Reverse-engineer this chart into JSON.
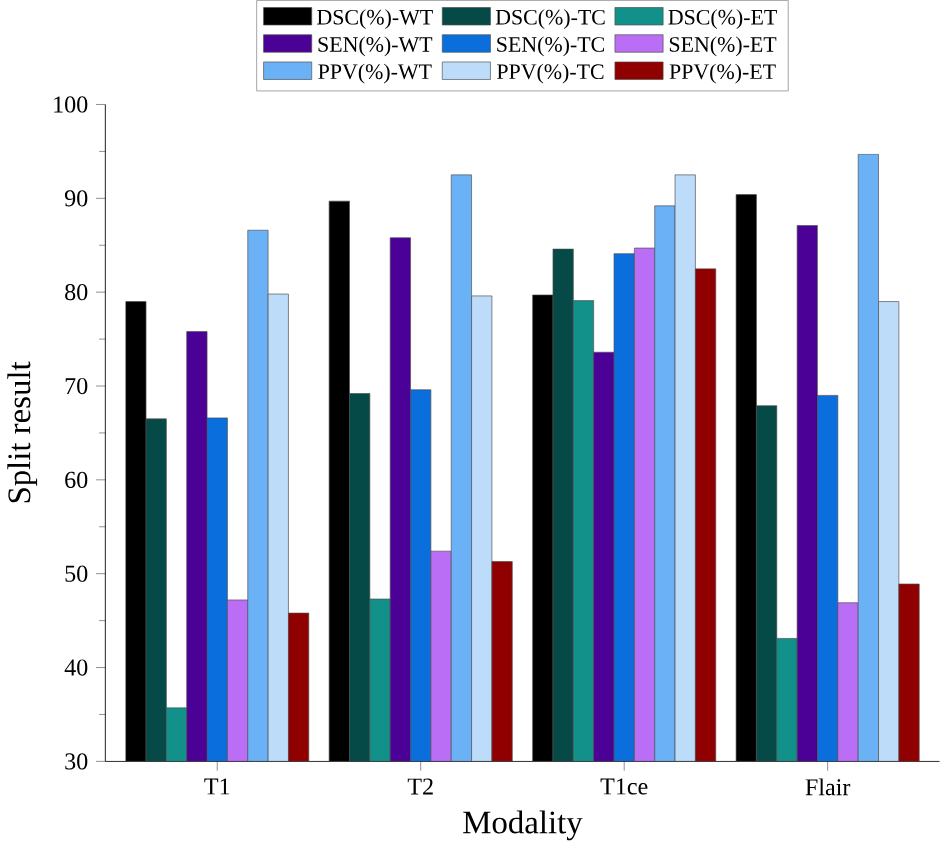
{
  "chart_data": {
    "type": "bar",
    "xlabel": "Modality",
    "ylabel": "Split result",
    "categories": [
      "T1",
      "T2",
      "T1ce",
      "Flair"
    ],
    "series": [
      {
        "name": "DSC(%)-WT",
        "color": "#000000",
        "values": [
          79.0,
          89.7,
          79.7,
          90.4
        ]
      },
      {
        "name": "DSC(%)-TC",
        "color": "#064a48",
        "values": [
          66.5,
          69.2,
          84.6,
          67.9
        ]
      },
      {
        "name": "DSC(%)-ET",
        "color": "#11918a",
        "values": [
          35.7,
          47.3,
          79.1,
          43.1
        ]
      },
      {
        "name": "SEN(%)-WT",
        "color": "#4b0096",
        "values": [
          75.8,
          85.8,
          73.6,
          87.1
        ]
      },
      {
        "name": "SEN(%)-TC",
        "color": "#0a6fdc",
        "values": [
          66.6,
          69.6,
          84.1,
          69.0
        ]
      },
      {
        "name": "SEN(%)-ET",
        "color": "#b96ef5",
        "values": [
          47.2,
          52.4,
          84.7,
          46.9
        ]
      },
      {
        "name": "PPV(%)-WT",
        "color": "#6bb1f5",
        "values": [
          86.6,
          92.5,
          89.2,
          94.7
        ]
      },
      {
        "name": "PPV(%)-TC",
        "color": "#bcdcfa",
        "values": [
          79.8,
          79.6,
          92.5,
          79.0
        ]
      },
      {
        "name": "PPV(%)-ET",
        "color": "#900000",
        "values": [
          45.8,
          51.3,
          82.5,
          48.9
        ]
      }
    ],
    "ylim": [
      30,
      100
    ],
    "yticks": [
      30,
      40,
      50,
      60,
      70,
      80,
      90,
      100
    ],
    "grid": false,
    "legend": "top"
  }
}
